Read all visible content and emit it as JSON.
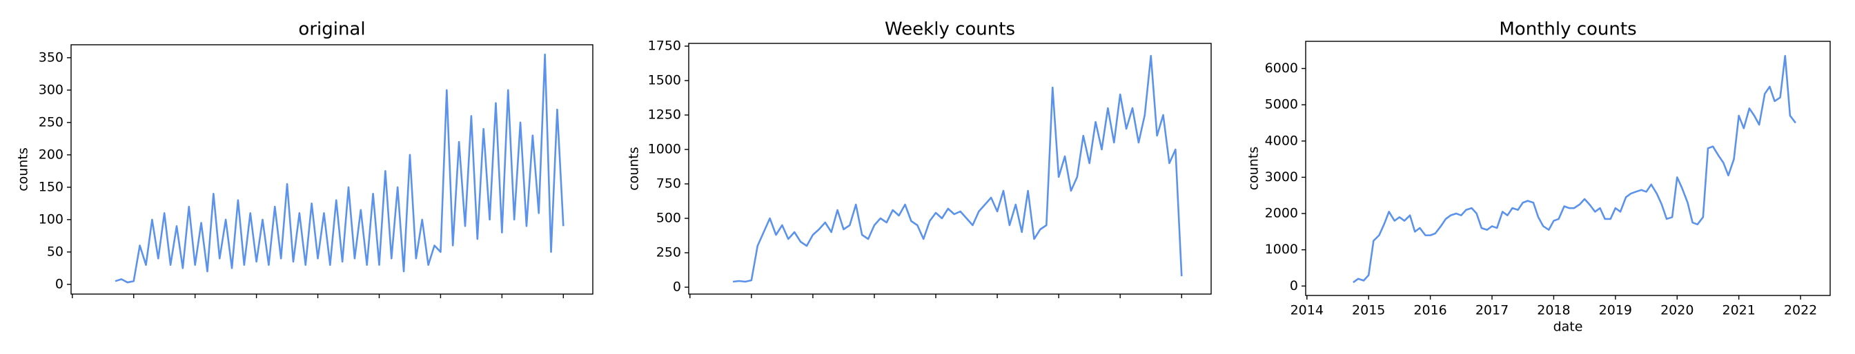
{
  "chart_data": [
    {
      "type": "line",
      "title": "original",
      "ylabel": "counts",
      "x": [
        2014.7,
        2014.8,
        2014.9,
        2015.0,
        2015.1,
        2015.2,
        2015.3,
        2015.4,
        2015.5,
        2015.6,
        2015.7,
        2015.8,
        2015.9,
        2016.0,
        2016.1,
        2016.2,
        2016.3,
        2016.4,
        2016.5,
        2016.6,
        2016.7,
        2016.8,
        2016.9,
        2017.0,
        2017.1,
        2017.2,
        2017.3,
        2017.4,
        2017.5,
        2017.6,
        2017.7,
        2017.8,
        2017.9,
        2018.0,
        2018.1,
        2018.2,
        2018.3,
        2018.4,
        2018.5,
        2018.6,
        2018.7,
        2018.8,
        2018.9,
        2019.0,
        2019.1,
        2019.2,
        2019.3,
        2019.4,
        2019.5,
        2019.6,
        2019.7,
        2019.8,
        2019.9,
        2020.0,
        2020.1,
        2020.2,
        2020.3,
        2020.4,
        2020.5,
        2020.6,
        2020.7,
        2020.8,
        2020.9,
        2021.0,
        2021.1,
        2021.2,
        2021.3,
        2021.4,
        2021.5,
        2021.6,
        2021.7,
        2021.8,
        2021.9,
        2022.0
      ],
      "series": [
        {
          "color": "#5a92ec",
          "values": [
            5,
            8,
            3,
            5,
            60,
            30,
            100,
            40,
            110,
            30,
            90,
            25,
            120,
            30,
            95,
            20,
            140,
            40,
            100,
            25,
            130,
            30,
            110,
            35,
            100,
            30,
            120,
            40,
            155,
            35,
            110,
            30,
            125,
            40,
            110,
            30,
            130,
            35,
            150,
            40,
            115,
            30,
            140,
            30,
            175,
            40,
            150,
            20,
            200,
            40,
            100,
            30,
            60,
            50,
            300,
            60,
            220,
            90,
            260,
            70,
            240,
            100,
            280,
            80,
            300,
            100,
            250,
            90,
            230,
            110,
            355,
            50,
            270,
            90
          ]
        }
      ],
      "xlim": [
        2013.98,
        2022.48
      ],
      "xticks": [
        2014,
        2015,
        2016,
        2017,
        2018,
        2019,
        2020,
        2021,
        2022
      ],
      "xtick_labels": false,
      "ylim": [
        -15,
        370
      ],
      "yticks": [
        0,
        50,
        100,
        150,
        200,
        250,
        300,
        350
      ]
    },
    {
      "type": "line",
      "title": "Weekly counts",
      "ylabel": "counts",
      "x": [
        2014.7,
        2014.8,
        2014.9,
        2015.0,
        2015.1,
        2015.2,
        2015.3,
        2015.4,
        2015.5,
        2015.6,
        2015.7,
        2015.8,
        2015.9,
        2016.0,
        2016.1,
        2016.2,
        2016.3,
        2016.4,
        2016.5,
        2016.6,
        2016.7,
        2016.8,
        2016.9,
        2017.0,
        2017.1,
        2017.2,
        2017.3,
        2017.4,
        2017.5,
        2017.6,
        2017.7,
        2017.8,
        2017.9,
        2018.0,
        2018.1,
        2018.2,
        2018.3,
        2018.4,
        2018.5,
        2018.6,
        2018.7,
        2018.8,
        2018.9,
        2019.0,
        2019.1,
        2019.2,
        2019.3,
        2019.4,
        2019.5,
        2019.6,
        2019.7,
        2019.8,
        2019.9,
        2020.0,
        2020.1,
        2020.2,
        2020.3,
        2020.4,
        2020.5,
        2020.6,
        2020.7,
        2020.8,
        2020.9,
        2021.0,
        2021.1,
        2021.2,
        2021.3,
        2021.4,
        2021.5,
        2021.6,
        2021.7,
        2021.8,
        2021.9,
        2022.0
      ],
      "series": [
        {
          "color": "#5a92ec",
          "values": [
            40,
            45,
            40,
            50,
            300,
            400,
            500,
            380,
            450,
            350,
            400,
            330,
            300,
            380,
            420,
            470,
            400,
            560,
            420,
            450,
            600,
            380,
            350,
            450,
            500,
            470,
            560,
            520,
            600,
            480,
            450,
            350,
            480,
            540,
            500,
            570,
            530,
            550,
            500,
            450,
            550,
            600,
            650,
            550,
            700,
            450,
            600,
            400,
            700,
            350,
            420,
            450,
            1450,
            800,
            950,
            700,
            800,
            1100,
            900,
            1200,
            1000,
            1300,
            1050,
            1400,
            1150,
            1300,
            1050,
            1250,
            1680,
            1100,
            1250,
            900,
            1000,
            80
          ]
        }
      ],
      "xlim": [
        2013.98,
        2022.48
      ],
      "xticks": [
        2014,
        2015,
        2016,
        2017,
        2018,
        2019,
        2020,
        2021,
        2022
      ],
      "xtick_labels": false,
      "ylim": [
        -50,
        1770
      ],
      "yticks": [
        0,
        250,
        500,
        750,
        1000,
        1250,
        1500,
        1750
      ]
    },
    {
      "type": "line",
      "title": "Monthly counts",
      "ylabel": "counts",
      "xlabel": "date",
      "x": [
        2014.75,
        2014.83,
        2014.92,
        2015.0,
        2015.08,
        2015.17,
        2015.25,
        2015.33,
        2015.42,
        2015.5,
        2015.58,
        2015.67,
        2015.75,
        2015.83,
        2015.92,
        2016.0,
        2016.08,
        2016.17,
        2016.25,
        2016.33,
        2016.42,
        2016.5,
        2016.58,
        2016.67,
        2016.75,
        2016.83,
        2016.92,
        2017.0,
        2017.08,
        2017.17,
        2017.25,
        2017.33,
        2017.42,
        2017.5,
        2017.58,
        2017.67,
        2017.75,
        2017.83,
        2017.92,
        2018.0,
        2018.08,
        2018.17,
        2018.25,
        2018.33,
        2018.42,
        2018.5,
        2018.58,
        2018.67,
        2018.75,
        2018.83,
        2018.92,
        2019.0,
        2019.08,
        2019.17,
        2019.25,
        2019.33,
        2019.42,
        2019.5,
        2019.58,
        2019.67,
        2019.75,
        2019.83,
        2019.92,
        2020.0,
        2020.08,
        2020.17,
        2020.25,
        2020.33,
        2020.42,
        2020.5,
        2020.58,
        2020.67,
        2020.75,
        2020.83,
        2020.92,
        2021.0,
        2021.08,
        2021.17,
        2021.25,
        2021.33,
        2021.42,
        2021.5,
        2021.58,
        2021.67,
        2021.75,
        2021.83,
        2021.92
      ],
      "series": [
        {
          "color": "#5a92ec",
          "values": [
            100,
            200,
            150,
            300,
            1250,
            1400,
            1700,
            2050,
            1800,
            1900,
            1800,
            1950,
            1500,
            1600,
            1400,
            1400,
            1450,
            1650,
            1850,
            1950,
            2000,
            1950,
            2100,
            2150,
            2000,
            1600,
            1550,
            1650,
            1600,
            2050,
            1950,
            2150,
            2100,
            2300,
            2350,
            2300,
            1900,
            1650,
            1550,
            1800,
            1850,
            2200,
            2150,
            2150,
            2250,
            2400,
            2250,
            2050,
            2150,
            1850,
            1850,
            2150,
            2050,
            2450,
            2550,
            2600,
            2650,
            2600,
            2800,
            2550,
            2250,
            1850,
            1900,
            3000,
            2700,
            2300,
            1750,
            1700,
            1900,
            3800,
            3850,
            3600,
            3400,
            3050,
            3500,
            4700,
            4350,
            4900,
            4700,
            4450,
            5300,
            5500,
            5100,
            5200,
            6350,
            4700,
            4500
          ]
        }
      ],
      "xlim": [
        2013.98,
        2022.48
      ],
      "xticks": [
        2014,
        2015,
        2016,
        2017,
        2018,
        2019,
        2020,
        2021,
        2022
      ],
      "xtick_labels": true,
      "ylim": [
        -260,
        6750
      ],
      "yticks": [
        0,
        1000,
        2000,
        3000,
        4000,
        5000,
        6000
      ]
    }
  ]
}
